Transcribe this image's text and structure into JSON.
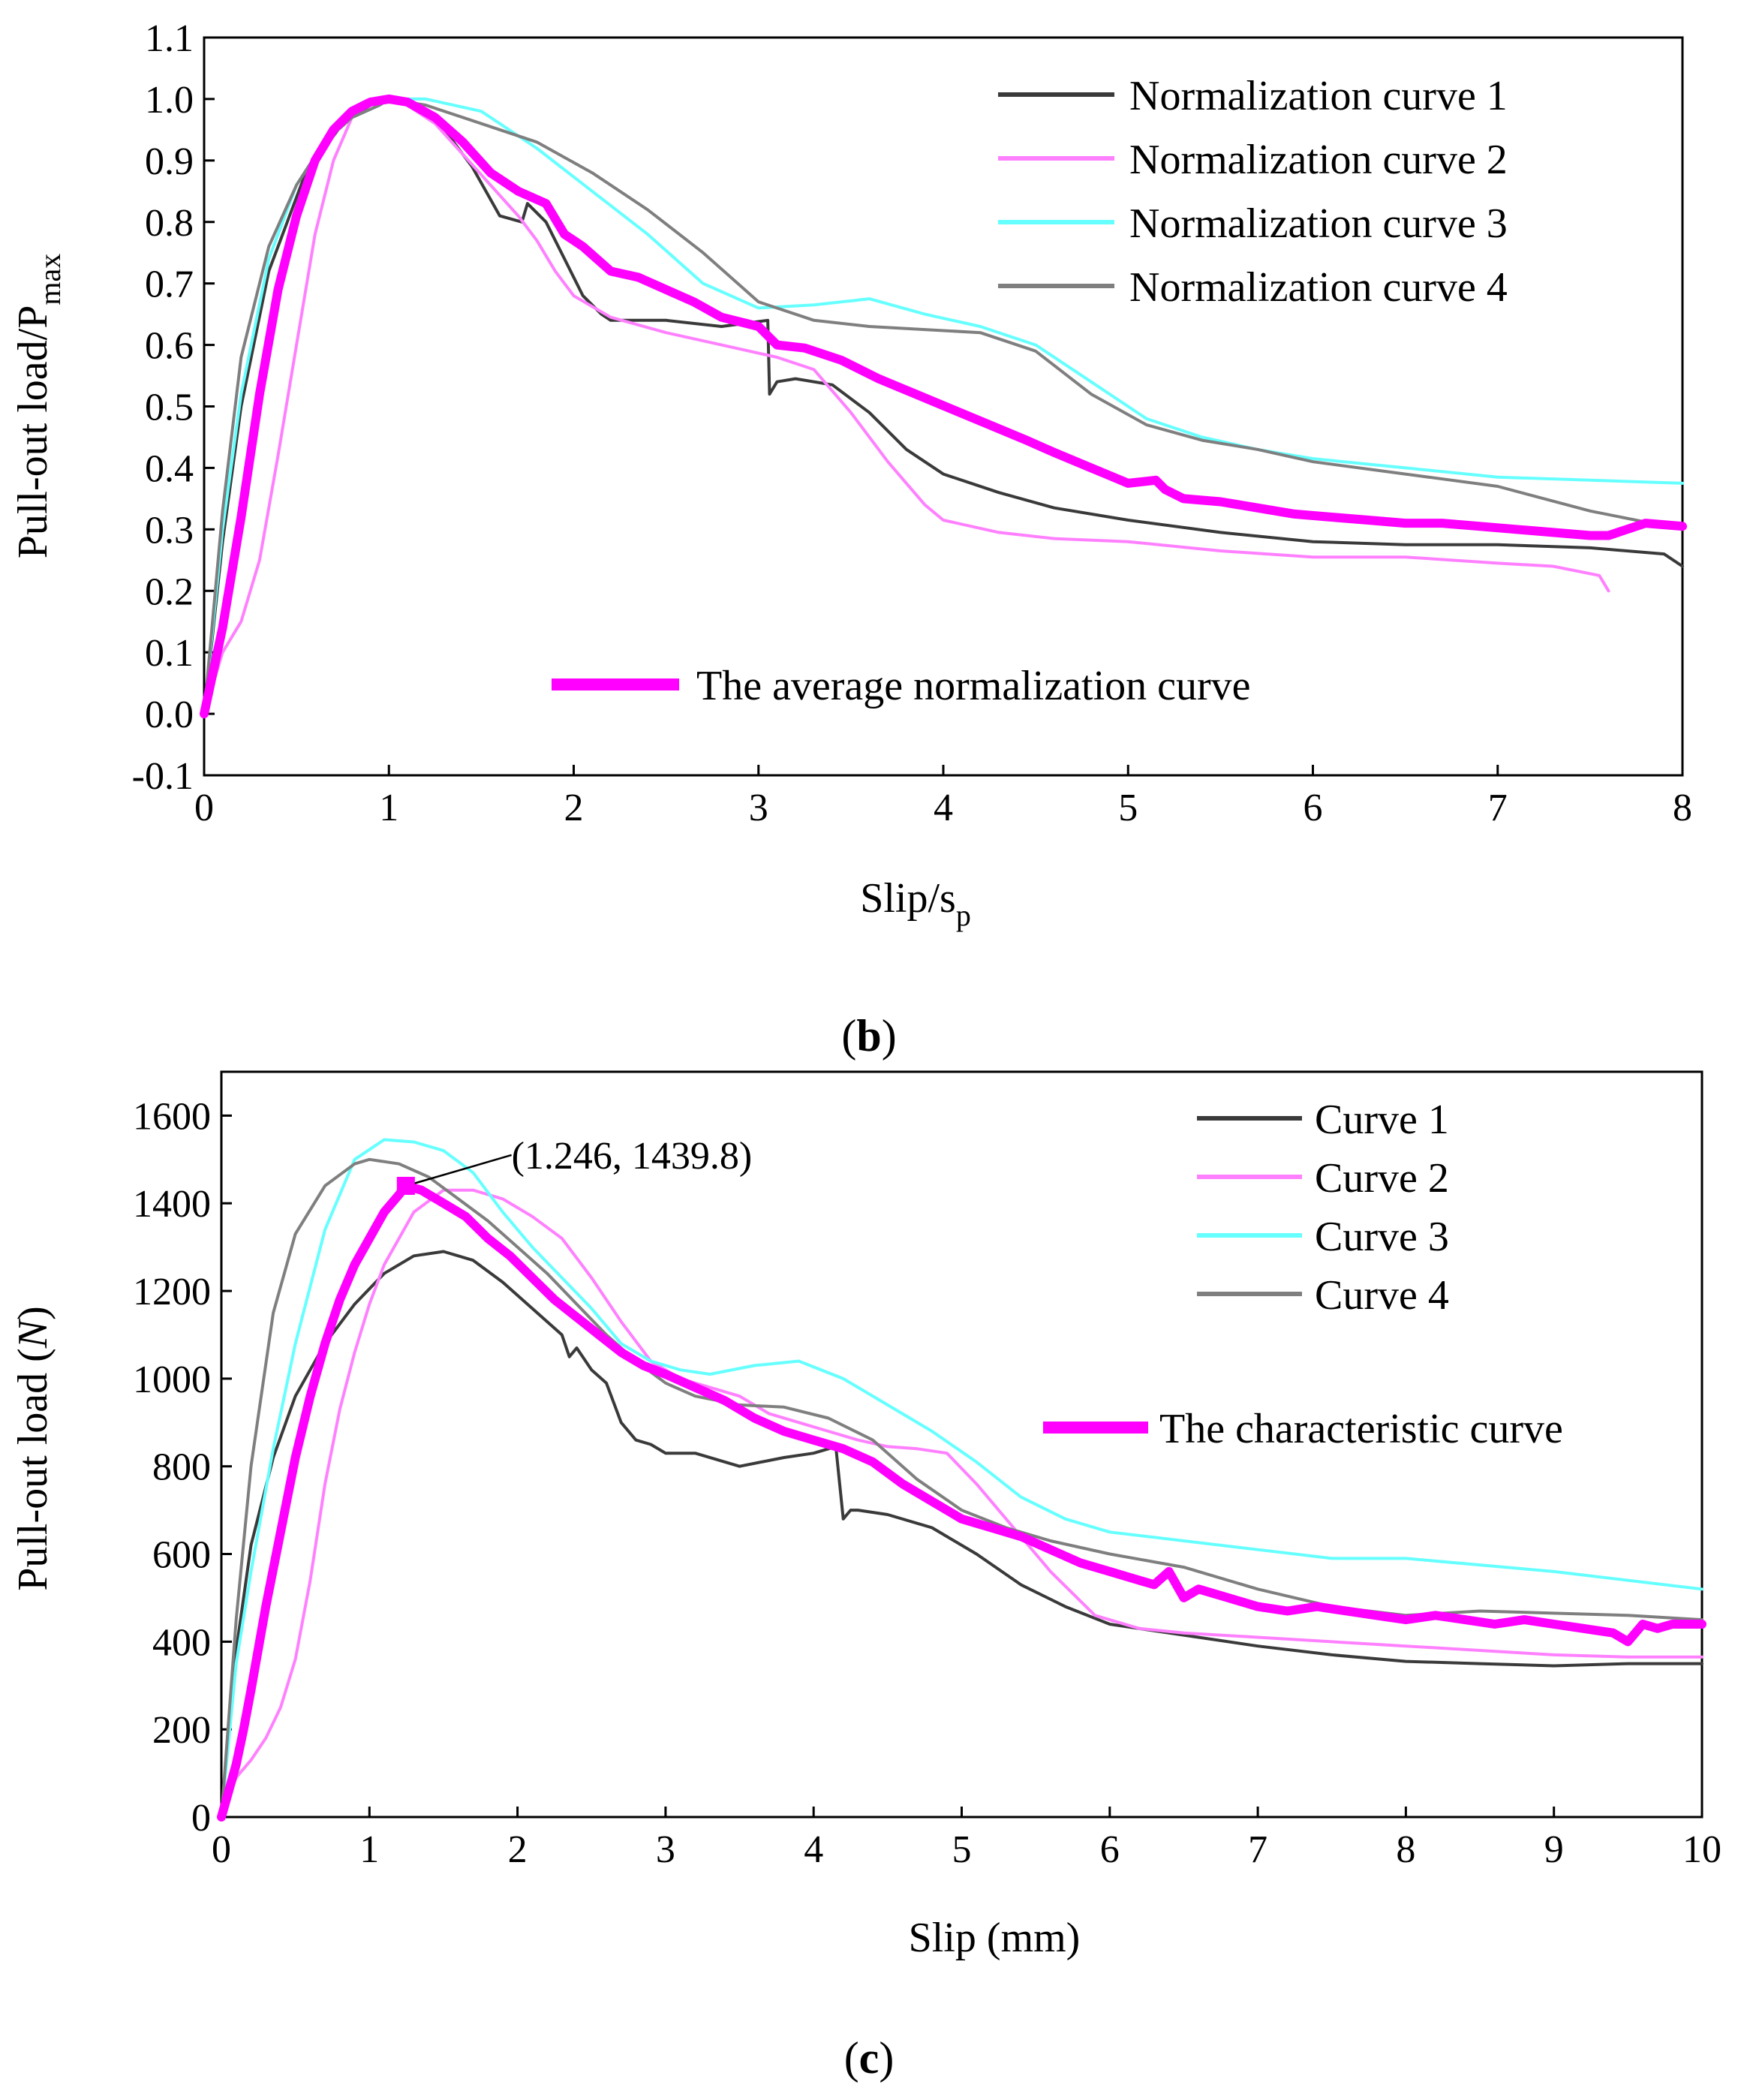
{
  "panels": [
    {
      "label_open": "(",
      "label_letter": "b",
      "label_close": ")",
      "chart_data": {
        "type": "line",
        "xlabel": "Slip/s",
        "xlabel_sub": "p",
        "ylabel": "Pull-out load/P",
        "ylabel_sub": "max",
        "xlim": [
          0,
          8
        ],
        "ylim": [
          -0.1,
          1.1
        ],
        "xticks": [
          "0",
          "1",
          "2",
          "3",
          "4",
          "5",
          "6",
          "7",
          "8"
        ],
        "yticks": [
          "-0.1",
          "0.0",
          "0.1",
          "0.2",
          "0.3",
          "0.4",
          "0.5",
          "0.6",
          "0.7",
          "0.8",
          "0.9",
          "1.0",
          "1.1"
        ],
        "series": [
          {
            "name": "Normalization curve 1",
            "color": "#3a3a3a",
            "width": 4,
            "x": [
              0,
              0.1,
              0.2,
              0.35,
              0.55,
              0.75,
              0.9,
              1.0,
              1.15,
              1.3,
              1.45,
              1.6,
              1.72,
              1.75,
              1.85,
              1.95,
              2.05,
              2.15,
              2.2,
              2.25,
              2.5,
              2.8,
              3.05,
              3.06,
              3.1,
              3.2,
              3.4,
              3.6,
              3.8,
              4.0,
              4.3,
              4.6,
              5.0,
              5.5,
              6.0,
              6.5,
              7.0,
              7.5,
              7.9,
              8.0
            ],
            "y": [
              0,
              0.28,
              0.5,
              0.72,
              0.88,
              0.96,
              0.99,
              1.0,
              0.99,
              0.95,
              0.89,
              0.81,
              0.8,
              0.83,
              0.8,
              0.74,
              0.68,
              0.65,
              0.64,
              0.64,
              0.64,
              0.63,
              0.64,
              0.52,
              0.54,
              0.545,
              0.535,
              0.49,
              0.43,
              0.39,
              0.36,
              0.335,
              0.315,
              0.295,
              0.28,
              0.275,
              0.275,
              0.27,
              0.26,
              0.24
            ]
          },
          {
            "name": "Normalization curve 2",
            "color": "#ff80ff",
            "width": 4,
            "x": [
              0,
              0.1,
              0.2,
              0.3,
              0.4,
              0.5,
              0.6,
              0.7,
              0.8,
              0.9,
              1.0,
              1.1,
              1.25,
              1.4,
              1.55,
              1.7,
              1.8,
              1.9,
              2.0,
              2.2,
              2.5,
              2.8,
              3.1,
              3.3,
              3.5,
              3.7,
              3.9,
              4.0,
              4.3,
              4.6,
              5.0,
              5.5,
              6.0,
              6.5,
              7.0,
              7.3,
              7.55,
              7.6
            ],
            "y": [
              0,
              0.1,
              0.15,
              0.25,
              0.42,
              0.6,
              0.78,
              0.9,
              0.97,
              1.0,
              1.0,
              0.99,
              0.96,
              0.91,
              0.86,
              0.81,
              0.77,
              0.72,
              0.68,
              0.645,
              0.62,
              0.6,
              0.58,
              0.56,
              0.49,
              0.41,
              0.34,
              0.315,
              0.295,
              0.285,
              0.28,
              0.265,
              0.255,
              0.255,
              0.245,
              0.24,
              0.225,
              0.2
            ]
          },
          {
            "name": "Normalization curve 3",
            "color": "#66ffff",
            "width": 4,
            "x": [
              0,
              0.1,
              0.2,
              0.35,
              0.5,
              0.65,
              0.8,
              0.95,
              1.0,
              1.2,
              1.5,
              1.8,
              2.1,
              2.4,
              2.7,
              3.0,
              3.3,
              3.6,
              3.9,
              4.2,
              4.5,
              4.8,
              5.1,
              5.4,
              5.7,
              6.0,
              6.5,
              7.0,
              7.5,
              8.0
            ],
            "y": [
              0,
              0.3,
              0.52,
              0.74,
              0.86,
              0.93,
              0.97,
              0.99,
              1.0,
              1.0,
              0.98,
              0.92,
              0.85,
              0.78,
              0.7,
              0.66,
              0.665,
              0.675,
              0.65,
              0.63,
              0.6,
              0.54,
              0.48,
              0.45,
              0.43,
              0.415,
              0.4,
              0.385,
              0.38,
              0.375
            ]
          },
          {
            "name": "Normalization curve 4",
            "color": "#7f7f7f",
            "width": 4,
            "x": [
              0,
              0.1,
              0.2,
              0.35,
              0.5,
              0.65,
              0.8,
              0.95,
              1.0,
              1.2,
              1.5,
              1.8,
              2.1,
              2.4,
              2.7,
              3.0,
              3.3,
              3.6,
              3.9,
              4.2,
              4.5,
              4.8,
              5.1,
              5.4,
              5.7,
              6.0,
              6.5,
              7.0,
              7.5,
              8.0
            ],
            "y": [
              0,
              0.33,
              0.58,
              0.76,
              0.86,
              0.93,
              0.97,
              0.99,
              1.0,
              0.99,
              0.96,
              0.93,
              0.88,
              0.82,
              0.75,
              0.67,
              0.64,
              0.63,
              0.625,
              0.62,
              0.59,
              0.52,
              0.47,
              0.445,
              0.43,
              0.41,
              0.39,
              0.37,
              0.33,
              0.3
            ]
          },
          {
            "name": "The average normalization curve",
            "color": "#ff00ff",
            "width": 12,
            "x": [
              0,
              0.1,
              0.2,
              0.3,
              0.4,
              0.5,
              0.6,
              0.7,
              0.8,
              0.9,
              1.0,
              1.1,
              1.25,
              1.4,
              1.55,
              1.7,
              1.85,
              1.95,
              2.05,
              2.2,
              2.35,
              2.5,
              2.65,
              2.8,
              3.0,
              3.1,
              3.25,
              3.45,
              3.65,
              3.85,
              4.05,
              4.25,
              4.45,
              4.6,
              4.8,
              5.0,
              5.15,
              5.2,
              5.3,
              5.5,
              5.7,
              5.9,
              6.1,
              6.3,
              6.5,
              6.7,
              6.9,
              7.1,
              7.3,
              7.5,
              7.6,
              7.7,
              7.8,
              8.0
            ],
            "y": [
              0,
              0.14,
              0.32,
              0.52,
              0.69,
              0.81,
              0.9,
              0.95,
              0.98,
              0.995,
              1.0,
              0.995,
              0.97,
              0.93,
              0.88,
              0.85,
              0.83,
              0.78,
              0.76,
              0.72,
              0.71,
              0.69,
              0.67,
              0.645,
              0.63,
              0.6,
              0.595,
              0.575,
              0.545,
              0.52,
              0.495,
              0.47,
              0.445,
              0.425,
              0.4,
              0.375,
              0.38,
              0.365,
              0.35,
              0.345,
              0.335,
              0.325,
              0.32,
              0.315,
              0.31,
              0.31,
              0.305,
              0.3,
              0.295,
              0.29,
              0.29,
              0.3,
              0.31,
              0.305
            ]
          }
        ]
      }
    },
    {
      "label_open": "(",
      "label_letter": "c",
      "label_close": ")",
      "chart_data": {
        "type": "line",
        "xlabel": "Slip (mm)",
        "ylabel_pre": "Pull-out load (",
        "ylabel_italic": "N",
        "ylabel_post": ")",
        "xlim": [
          0,
          10
        ],
        "ylim": [
          0,
          1700
        ],
        "xticks": [
          "0",
          "1",
          "2",
          "3",
          "4",
          "5",
          "6",
          "7",
          "8",
          "9",
          "10"
        ],
        "yticks": [
          "0",
          "200",
          "400",
          "600",
          "800",
          "1000",
          "1200",
          "1400",
          "1600"
        ],
        "annotation": {
          "text": "(1.246, 1439.8)",
          "x": 1.246,
          "y": 1439.8,
          "text_x": 2.0,
          "text_y": 1510
        },
        "series": [
          {
            "name": "Curve 1",
            "color": "#3a3a3a",
            "width": 4,
            "x": [
              0,
              0.1,
              0.2,
              0.35,
              0.5,
              0.7,
              0.9,
              1.1,
              1.3,
              1.5,
              1.7,
              1.9,
              2.1,
              2.3,
              2.35,
              2.4,
              2.5,
              2.6,
              2.7,
              2.8,
              2.9,
              3.0,
              3.2,
              3.5,
              3.8,
              4.0,
              4.15,
              4.2,
              4.25,
              4.3,
              4.5,
              4.8,
              5.1,
              5.4,
              5.7,
              6.0,
              6.5,
              7.0,
              7.5,
              8.0,
              8.5,
              9.0,
              9.5,
              10.0
            ],
            "y": [
              0,
              380,
              620,
              820,
              960,
              1080,
              1170,
              1240,
              1280,
              1290,
              1270,
              1220,
              1160,
              1100,
              1050,
              1070,
              1020,
              990,
              900,
              860,
              850,
              830,
              830,
              800,
              820,
              830,
              845,
              680,
              700,
              700,
              690,
              660,
              600,
              530,
              480,
              440,
              415,
              390,
              370,
              355,
              350,
              345,
              350,
              350
            ]
          },
          {
            "name": "Curve 2",
            "color": "#ff80ff",
            "width": 4,
            "x": [
              0,
              0.1,
              0.2,
              0.3,
              0.4,
              0.5,
              0.6,
              0.7,
              0.8,
              0.9,
              1.0,
              1.1,
              1.3,
              1.5,
              1.7,
              1.9,
              2.1,
              2.3,
              2.5,
              2.7,
              2.9,
              3.1,
              3.3,
              3.5,
              3.7,
              3.9,
              4.1,
              4.3,
              4.5,
              4.7,
              4.9,
              5.1,
              5.3,
              5.6,
              5.9,
              6.2,
              6.5,
              7.0,
              7.5,
              8.0,
              8.5,
              9.0,
              9.5,
              10.0
            ],
            "y": [
              0,
              90,
              130,
              180,
              250,
              360,
              540,
              760,
              930,
              1060,
              1170,
              1260,
              1380,
              1430,
              1430,
              1410,
              1370,
              1320,
              1230,
              1130,
              1040,
              1000,
              980,
              960,
              920,
              900,
              880,
              860,
              845,
              840,
              830,
              760,
              680,
              560,
              460,
              430,
              420,
              410,
              400,
              390,
              380,
              370,
              365,
              365
            ]
          },
          {
            "name": "Curve 3",
            "color": "#66ffff",
            "width": 4,
            "x": [
              0,
              0.1,
              0.2,
              0.35,
              0.5,
              0.7,
              0.9,
              1.1,
              1.3,
              1.5,
              1.7,
              1.9,
              2.1,
              2.3,
              2.5,
              2.7,
              2.9,
              3.1,
              3.3,
              3.6,
              3.9,
              4.2,
              4.5,
              4.8,
              5.1,
              5.4,
              5.7,
              6.0,
              6.5,
              7.0,
              7.5,
              8.0,
              8.5,
              9.0,
              9.5,
              10.0
            ],
            "y": [
              0,
              350,
              560,
              840,
              1080,
              1340,
              1500,
              1545,
              1540,
              1520,
              1470,
              1380,
              1300,
              1230,
              1160,
              1080,
              1040,
              1020,
              1010,
              1030,
              1040,
              1000,
              940,
              880,
              810,
              730,
              680,
              650,
              630,
              610,
              590,
              590,
              575,
              560,
              540,
              520
            ]
          },
          {
            "name": "Curve 4",
            "color": "#7f7f7f",
            "width": 4,
            "x": [
              0,
              0.1,
              0.2,
              0.35,
              0.5,
              0.7,
              0.9,
              1.0,
              1.2,
              1.4,
              1.6,
              1.8,
              2.0,
              2.2,
              2.4,
              2.6,
              2.8,
              3.0,
              3.2,
              3.5,
              3.8,
              4.1,
              4.4,
              4.7,
              5.0,
              5.3,
              5.6,
              6.0,
              6.5,
              7.0,
              7.5,
              8.0,
              8.5,
              9.0,
              9.5,
              10.0
            ],
            "y": [
              0,
              450,
              800,
              1150,
              1330,
              1440,
              1490,
              1500,
              1490,
              1460,
              1410,
              1360,
              1300,
              1240,
              1170,
              1100,
              1040,
              990,
              960,
              940,
              935,
              910,
              860,
              770,
              700,
              660,
              630,
              600,
              570,
              520,
              480,
              460,
              470,
              465,
              460,
              450
            ]
          },
          {
            "name": "The characteristic curve",
            "color": "#ff00ff",
            "width": 12,
            "x": [
              0,
              0.05,
              0.1,
              0.15,
              0.2,
              0.3,
              0.4,
              0.5,
              0.6,
              0.7,
              0.8,
              0.9,
              1.0,
              1.1,
              1.2,
              1.246,
              1.35,
              1.5,
              1.65,
              1.8,
              1.95,
              2.1,
              2.25,
              2.4,
              2.55,
              2.7,
              2.85,
              3.0,
              3.2,
              3.4,
              3.6,
              3.8,
              4.0,
              4.2,
              4.4,
              4.6,
              4.8,
              5.0,
              5.2,
              5.4,
              5.6,
              5.8,
              6.0,
              6.2,
              6.3,
              6.4,
              6.5,
              6.6,
              6.8,
              7.0,
              7.2,
              7.4,
              7.6,
              7.8,
              8.0,
              8.2,
              8.4,
              8.6,
              8.8,
              9.0,
              9.2,
              9.4,
              9.5,
              9.6,
              9.7,
              9.8,
              10.0
            ],
            "y": [
              0,
              60,
              120,
              200,
              290,
              480,
              650,
              820,
              960,
              1080,
              1180,
              1260,
              1320,
              1380,
              1420,
              1440,
              1430,
              1400,
              1370,
              1320,
              1280,
              1230,
              1180,
              1140,
              1100,
              1060,
              1030,
              1010,
              980,
              950,
              910,
              880,
              860,
              840,
              810,
              760,
              720,
              680,
              660,
              640,
              610,
              580,
              560,
              540,
              530,
              560,
              500,
              520,
              500,
              480,
              470,
              480,
              470,
              460,
              450,
              460,
              450,
              440,
              450,
              440,
              430,
              420,
              400,
              440,
              430,
              440,
              440
            ]
          }
        ]
      }
    }
  ]
}
